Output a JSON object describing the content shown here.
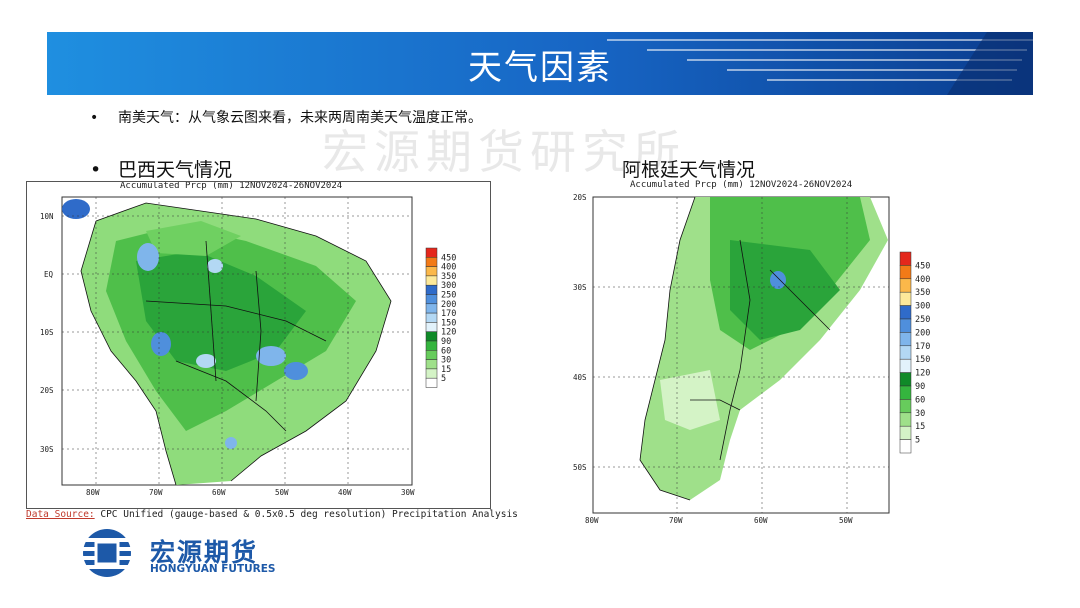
{
  "slide": {
    "title": "天气因素",
    "bullet_main": "南美天气：从气象云图来看，未来两周南美天气温度正常。",
    "label_brazil": "巴西天气情况",
    "label_argentina": "阿根廷天气情况",
    "watermark": "宏源期货研究所"
  },
  "map_brazil": {
    "header": "Accumulated Prcp (mm) 12NOV2024-26NOV2024",
    "y_ticks": [
      "10N",
      "EQ",
      "10S",
      "20S",
      "30S"
    ],
    "x_ticks": [
      "80W",
      "70W",
      "60W",
      "50W",
      "40W",
      "30W"
    ]
  },
  "map_argentina": {
    "header": "Accumulated Prcp (mm) 12NOV2024-26NOV2024",
    "y_ticks": [
      "20S",
      "30S",
      "40S",
      "50S"
    ],
    "x_ticks": [
      "80W",
      "70W",
      "60W",
      "50W"
    ]
  },
  "legend": {
    "levels": [
      "450",
      "400",
      "350",
      "300",
      "250",
      "200",
      "170",
      "150",
      "120",
      "90",
      "60",
      "30",
      "15",
      "5"
    ],
    "colors": [
      "#e4271c",
      "#f27a17",
      "#fbb84a",
      "#fde99a",
      "#2f6bc9",
      "#4f8fdc",
      "#7fb5eb",
      "#b3d8f4",
      "#e2f2fb",
      "#0f8a28",
      "#34b53e",
      "#67cc5c",
      "#9fe08a",
      "#d4f3c6",
      "#ffffff"
    ]
  },
  "source": {
    "label": "Data Source:",
    "text": " CPC Unified (gauge-based & 0.5x0.5 deg resolution) Precipitation Analysis"
  },
  "logo": {
    "cn": "宏源期货",
    "en": "HONGYUAN FUTURES"
  }
}
